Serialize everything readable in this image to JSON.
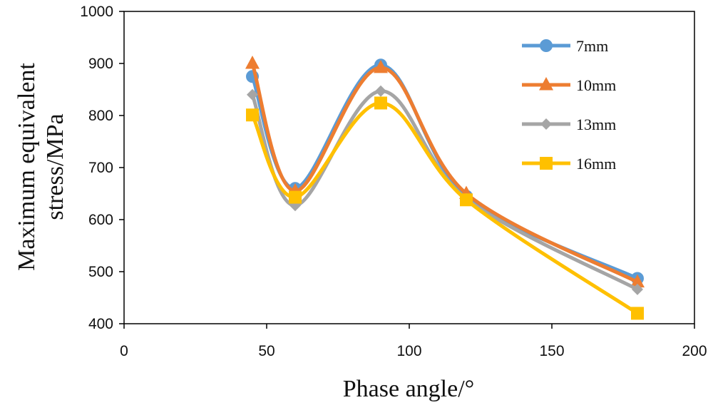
{
  "chart_data": {
    "type": "line",
    "smooth": true,
    "title": "",
    "xlabel": "Phase angle/°",
    "ylabel_lines": [
      "Maximum equivalent",
      "stress/MPa"
    ],
    "xlim": [
      0,
      200
    ],
    "ylim": [
      400,
      1000
    ],
    "xticks": [
      0,
      50,
      100,
      150,
      200
    ],
    "yticks": [
      400,
      500,
      600,
      700,
      800,
      900,
      1000
    ],
    "grid": false,
    "legend_position": "top-right",
    "x": [
      45,
      60,
      90,
      120,
      180
    ],
    "series": [
      {
        "name": "7mm",
        "color": "#5B9BD5",
        "marker": "circle",
        "values": [
          875,
          660,
          897,
          645,
          487
        ]
      },
      {
        "name": "10mm",
        "color": "#ED7D31",
        "marker": "triangle",
        "values": [
          900,
          655,
          892,
          650,
          480
        ]
      },
      {
        "name": "13mm",
        "color": "#A5A5A5",
        "marker": "diamond",
        "values": [
          840,
          627,
          847,
          640,
          466
        ]
      },
      {
        "name": "16mm",
        "color": "#FFC000",
        "marker": "square",
        "values": [
          801,
          643,
          824,
          638,
          420
        ]
      }
    ]
  }
}
